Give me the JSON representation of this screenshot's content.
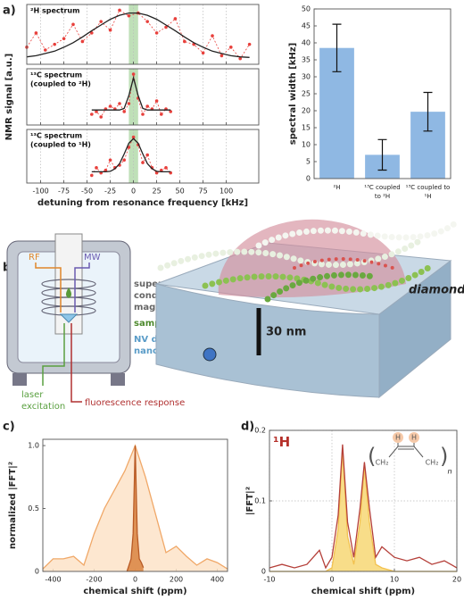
{
  "panel_labels": [
    "a)",
    "b)",
    "c)",
    "d)"
  ],
  "diagram": {
    "rf": "RF",
    "mw": "MW",
    "magnet": [
      "super-",
      "conducting",
      "magnet"
    ],
    "sample": "sample @ RT",
    "probe": [
      "NV diamond @ RT",
      "nano NMR probe"
    ],
    "laser": [
      "laser",
      "excitation"
    ],
    "fluorescence": "fluorescence response",
    "scale": "30 nm",
    "diamond": "diamond"
  },
  "chart_data": [
    {
      "type": "line",
      "title": [
        "²H spectrum"
      ],
      "xlim": [
        -115,
        135
      ],
      "ylim": [
        0,
        1.05
      ],
      "xticks": [
        -100,
        -75,
        -50,
        -25,
        0,
        25,
        50,
        75,
        100
      ],
      "grid": true,
      "highlight": [
        -5,
        5
      ],
      "highlight_color": "#bfe0b8",
      "x": [
        -115,
        -105,
        -95,
        -85,
        -75,
        -65,
        -55,
        -45,
        -35,
        -25,
        -15,
        -5,
        5,
        15,
        25,
        35,
        45,
        55,
        65,
        75,
        85,
        95,
        105,
        115,
        125
      ],
      "series": [
        {
          "color": "#e8403c",
          "style": "dashed",
          "markers": true,
          "values": [
            0.3,
            0.55,
            0.25,
            0.35,
            0.45,
            0.7,
            0.4,
            0.55,
            0.75,
            0.6,
            0.95,
            0.85,
            0.9,
            0.75,
            0.55,
            0.65,
            0.8,
            0.4,
            0.35,
            0.2,
            0.5,
            0.15,
            0.3,
            0.1,
            0.35
          ]
        },
        {
          "color": "#222222",
          "style": "solid",
          "values": [
            0.13,
            0.15,
            0.19,
            0.23,
            0.3,
            0.38,
            0.48,
            0.59,
            0.69,
            0.79,
            0.86,
            0.9,
            0.9,
            0.86,
            0.79,
            0.69,
            0.59,
            0.48,
            0.38,
            0.3,
            0.23,
            0.19,
            0.15,
            0.13,
            0.12
          ]
        }
      ]
    },
    {
      "type": "line",
      "title": [
        "¹³C spectrum",
        "(coupled to ²H)"
      ],
      "ylabel": "NMR signal [a.u.]",
      "xlim": [
        -115,
        135
      ],
      "ylim": [
        0,
        1.05
      ],
      "xticks": [
        -100,
        -75,
        -50,
        -25,
        0,
        25,
        50,
        75,
        100
      ],
      "grid": true,
      "highlight": [
        -5,
        5
      ],
      "highlight_color": "#bfe0b8",
      "x": [
        -45,
        -40,
        -35,
        -30,
        -25,
        -20,
        -15,
        -10,
        -5,
        0,
        5,
        10,
        15,
        20,
        25,
        30,
        35,
        40
      ],
      "series": [
        {
          "color": "#e8403c",
          "style": "dashed",
          "markers": true,
          "values": [
            0.2,
            0.25,
            0.15,
            0.3,
            0.35,
            0.3,
            0.4,
            0.25,
            0.4,
            0.95,
            0.5,
            0.2,
            0.35,
            0.3,
            0.45,
            0.2,
            0.3,
            0.25
          ]
        },
        {
          "color": "#222222",
          "style": "solid",
          "values": [
            0.28,
            0.28,
            0.28,
            0.28,
            0.28,
            0.28,
            0.28,
            0.31,
            0.55,
            0.88,
            0.55,
            0.31,
            0.28,
            0.28,
            0.28,
            0.28,
            0.28,
            0.28
          ]
        }
      ]
    },
    {
      "type": "line",
      "title": [
        "¹³C spectrum",
        "(coupled to ¹H)"
      ],
      "xlabel": "detuning from resonance frequency [kHz]",
      "xlim": [
        -115,
        135
      ],
      "ylim": [
        0,
        1.05
      ],
      "xticks": [
        -100,
        -75,
        -50,
        -25,
        0,
        25,
        50,
        75,
        100
      ],
      "grid": true,
      "highlight": [
        -5,
        5
      ],
      "highlight_color": "#bfe0b8",
      "x": [
        -45,
        -40,
        -35,
        -30,
        -25,
        -20,
        -15,
        -10,
        -5,
        0,
        5,
        10,
        15,
        20,
        25,
        30,
        35,
        40
      ],
      "series": [
        {
          "color": "#e8403c",
          "style": "dashed",
          "markers": true,
          "values": [
            0.15,
            0.3,
            0.2,
            0.25,
            0.45,
            0.3,
            0.35,
            0.45,
            0.7,
            0.9,
            0.75,
            0.4,
            0.55,
            0.3,
            0.2,
            0.25,
            0.3,
            0.2
          ]
        },
        {
          "color": "#222222",
          "style": "solid",
          "values": [
            0.22,
            0.22,
            0.22,
            0.22,
            0.23,
            0.28,
            0.38,
            0.57,
            0.78,
            0.87,
            0.78,
            0.57,
            0.38,
            0.28,
            0.23,
            0.22,
            0.22,
            0.22
          ]
        }
      ]
    },
    {
      "type": "bar",
      "ylabel": "spectral width [kHz]",
      "categories": [
        [
          "²H"
        ],
        [
          "¹³C coupled",
          "to ²H"
        ],
        [
          "¹³C coupled to",
          "¹H"
        ]
      ],
      "values": [
        38.5,
        7,
        19.7
      ],
      "errors": [
        7,
        4.5,
        5.7
      ],
      "color": "#8fb8e3",
      "ylim": [
        0,
        50
      ],
      "yticks": [
        0,
        5,
        10,
        15,
        20,
        25,
        30,
        35,
        40,
        45,
        50
      ]
    },
    {
      "type": "line",
      "xlabel": "chemical shift (ppm)",
      "ylabel": "normalized |FFT|²",
      "xlim": [
        -450,
        450
      ],
      "ylim": [
        0,
        1.05
      ],
      "xticks": [
        -400,
        -200,
        0,
        200,
        400
      ],
      "yticks": [
        0,
        0.5,
        {
          "value": 1,
          "label": "1.0"
        }
      ],
      "grid": false,
      "series": [
        {
          "color": "#f0a868",
          "fill": "#fde3c8",
          "x": [
            -450,
            -400,
            -350,
            -300,
            -250,
            -200,
            -150,
            -100,
            -50,
            0,
            50,
            100,
            150,
            200,
            250,
            300,
            350,
            400,
            450
          ],
          "values": [
            0.02,
            0.1,
            0.1,
            0.12,
            0.05,
            0.3,
            0.5,
            0.65,
            0.8,
            1.0,
            0.75,
            0.45,
            0.15,
            0.2,
            0.12,
            0.05,
            0.1,
            0.07,
            0.02
          ]
        },
        {
          "color": "#b85a25",
          "fill": "#d9823f",
          "x": [
            -40,
            -30,
            -20,
            -10,
            0,
            10,
            20,
            30,
            40
          ],
          "values": [
            0,
            0.05,
            0.1,
            0.3,
            1.0,
            0.3,
            0.1,
            0.07,
            0.03
          ]
        }
      ]
    },
    {
      "type": "line",
      "title": [
        "¹H"
      ],
      "title_color": "#b5302a",
      "xlabel": "chemical shift (ppm)",
      "ylabel": "|FFT|²",
      "xlim": [
        -10,
        20
      ],
      "ylim": [
        0,
        0.2
      ],
      "xticks": [
        -10,
        0,
        10,
        20
      ],
      "yticks": [
        0,
        0.1,
        0.2
      ],
      "grid": true,
      "structure": [
        "H",
        "H",
        "CH₂",
        "CH₂",
        "n"
      ],
      "x": [
        -10,
        -8,
        -6,
        -4,
        -2,
        -1,
        0,
        1,
        1.7,
        2.5,
        3.5,
        4.5,
        5.2,
        6,
        7,
        8,
        10,
        12,
        14,
        16,
        18,
        20
      ],
      "series": [
        {
          "color": "#f2c14e",
          "fill": "#f7d774",
          "values": [
            0,
            0,
            0,
            0,
            0,
            0,
            0.005,
            0.06,
            0.175,
            0.05,
            0.01,
            0.07,
            0.15,
            0.07,
            0.01,
            0.005,
            0,
            0,
            0,
            0,
            0,
            0
          ]
        },
        {
          "color": "#b5403a",
          "values": [
            0.005,
            0.01,
            0.005,
            0.01,
            0.03,
            0.005,
            0.02,
            0.08,
            0.18,
            0.07,
            0.02,
            0.09,
            0.155,
            0.09,
            0.02,
            0.035,
            0.02,
            0.015,
            0.02,
            0.01,
            0.015,
            0.005
          ]
        }
      ]
    }
  ]
}
